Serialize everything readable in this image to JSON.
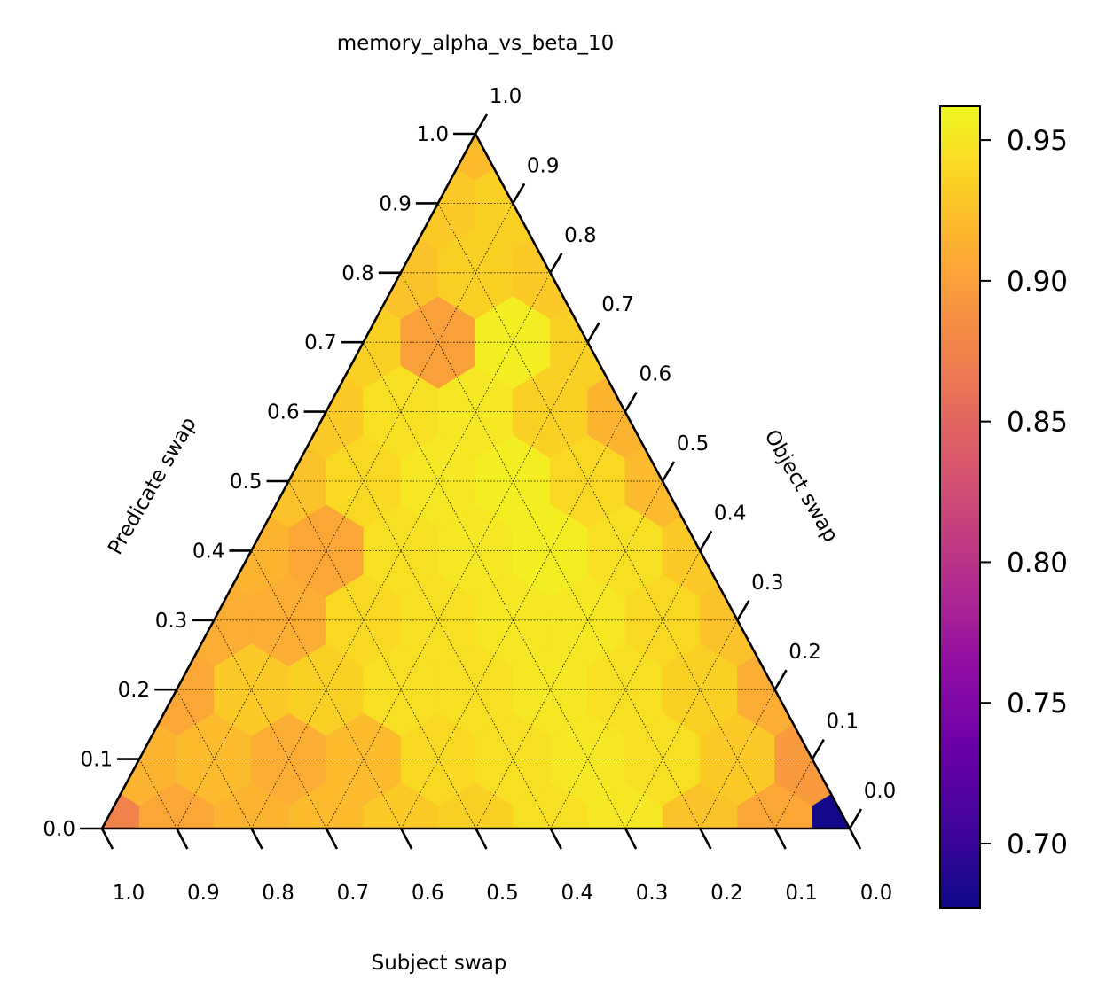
{
  "chart_data": {
    "type": "heatmap",
    "subtype": "ternary",
    "title": "memory_alpha_vs_beta_10",
    "axes": {
      "bottom": {
        "label": "Subject swap",
        "ticks": [
          "1.0",
          "0.9",
          "0.8",
          "0.7",
          "0.6",
          "0.5",
          "0.4",
          "0.3",
          "0.2",
          "0.1",
          "0.0"
        ]
      },
      "left": {
        "label": "Predicate swap",
        "ticks": [
          "0.0",
          "0.1",
          "0.2",
          "0.3",
          "0.4",
          "0.5",
          "0.6",
          "0.7",
          "0.8",
          "0.9",
          "1.0"
        ]
      },
      "right": {
        "label": "Object swap",
        "ticks": [
          "0.0",
          "0.1",
          "0.2",
          "0.3",
          "0.4",
          "0.5",
          "0.6",
          "0.7",
          "0.8",
          "0.9",
          "1.0"
        ]
      }
    },
    "grid": true,
    "scale": 10,
    "point_index": "[i, j, k] with i = bottom-axis step (0 = left corner, 10 = right corner), j = left-axis step (0 = base, 10 = apex), k = 10 - i - j",
    "points": [
      [
        0,
        0,
        10,
        0.875
      ],
      [
        1,
        0,
        9,
        0.905
      ],
      [
        2,
        0,
        8,
        0.915
      ],
      [
        3,
        0,
        7,
        0.92
      ],
      [
        4,
        0,
        6,
        0.93
      ],
      [
        5,
        0,
        5,
        0.935
      ],
      [
        6,
        0,
        4,
        0.945
      ],
      [
        7,
        0,
        3,
        0.95
      ],
      [
        8,
        0,
        2,
        0.925
      ],
      [
        9,
        0,
        1,
        0.905
      ],
      [
        10,
        0,
        0,
        0.68
      ],
      [
        0,
        1,
        9,
        0.915
      ],
      [
        1,
        1,
        8,
        0.92
      ],
      [
        2,
        1,
        7,
        0.91
      ],
      [
        3,
        1,
        6,
        0.92
      ],
      [
        4,
        1,
        5,
        0.94
      ],
      [
        5,
        1,
        4,
        0.945
      ],
      [
        6,
        1,
        3,
        0.95
      ],
      [
        7,
        1,
        2,
        0.945
      ],
      [
        8,
        1,
        1,
        0.93
      ],
      [
        9,
        1,
        0,
        0.895
      ],
      [
        0,
        2,
        8,
        0.905
      ],
      [
        1,
        2,
        7,
        0.93
      ],
      [
        2,
        2,
        6,
        0.935
      ],
      [
        3,
        2,
        5,
        0.945
      ],
      [
        4,
        2,
        4,
        0.945
      ],
      [
        5,
        2,
        3,
        0.95
      ],
      [
        6,
        2,
        2,
        0.945
      ],
      [
        7,
        2,
        1,
        0.935
      ],
      [
        8,
        2,
        0,
        0.91
      ],
      [
        0,
        3,
        7,
        0.91
      ],
      [
        1,
        3,
        6,
        0.91
      ],
      [
        2,
        3,
        5,
        0.94
      ],
      [
        3,
        3,
        4,
        0.945
      ],
      [
        4,
        3,
        3,
        0.95
      ],
      [
        5,
        3,
        2,
        0.95
      ],
      [
        6,
        3,
        1,
        0.94
      ],
      [
        7,
        3,
        0,
        0.925
      ],
      [
        0,
        4,
        6,
        0.915
      ],
      [
        1,
        4,
        5,
        0.905
      ],
      [
        2,
        4,
        4,
        0.945
      ],
      [
        3,
        4,
        3,
        0.95
      ],
      [
        4,
        4,
        2,
        0.955
      ],
      [
        5,
        4,
        1,
        0.945
      ],
      [
        6,
        4,
        0,
        0.93
      ],
      [
        0,
        5,
        5,
        0.925
      ],
      [
        1,
        5,
        4,
        0.94
      ],
      [
        2,
        5,
        3,
        0.95
      ],
      [
        3,
        5,
        2,
        0.955
      ],
      [
        4,
        5,
        1,
        0.94
      ],
      [
        5,
        5,
        0,
        0.92
      ],
      [
        0,
        6,
        4,
        0.93
      ],
      [
        1,
        6,
        3,
        0.945
      ],
      [
        2,
        6,
        2,
        0.95
      ],
      [
        3,
        6,
        1,
        0.935
      ],
      [
        4,
        6,
        0,
        0.915
      ],
      [
        0,
        7,
        3,
        0.935
      ],
      [
        1,
        7,
        2,
        0.9
      ],
      [
        2,
        7,
        1,
        0.955
      ],
      [
        3,
        7,
        0,
        0.935
      ],
      [
        0,
        8,
        2,
        0.925
      ],
      [
        1,
        8,
        1,
        0.935
      ],
      [
        2,
        8,
        0,
        0.93
      ],
      [
        0,
        9,
        1,
        0.93
      ],
      [
        1,
        9,
        0,
        0.935
      ],
      [
        0,
        10,
        0,
        0.92
      ]
    ],
    "colorbar": {
      "colormap": "plasma",
      "vmin": 0.677,
      "vmax": 0.962,
      "ticks": [
        "0.70",
        "0.75",
        "0.80",
        "0.85",
        "0.90",
        "0.95"
      ]
    }
  }
}
